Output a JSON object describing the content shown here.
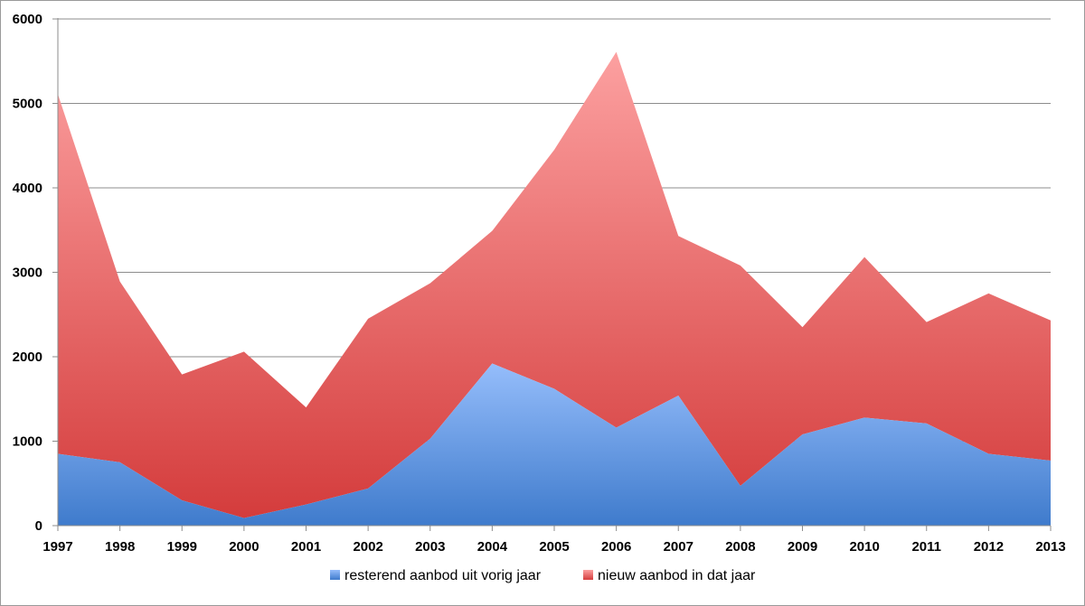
{
  "chart_data": {
    "type": "area",
    "stacked": true,
    "categories": [
      "1997",
      "1998",
      "1999",
      "2000",
      "2001",
      "2002",
      "2003",
      "2004",
      "2005",
      "2006",
      "2007",
      "2008",
      "2009",
      "2010",
      "2011",
      "2012",
      "2013"
    ],
    "series": [
      {
        "name": "resterend aanbod uit vorig jaar",
        "color": "#4f86d6",
        "values": [
          850,
          750,
          300,
          90,
          250,
          440,
          1030,
          1920,
          1620,
          1160,
          1540,
          470,
          1080,
          1280,
          1210,
          850,
          770
        ]
      },
      {
        "name": "nieuw aanbod in dat jaar",
        "color": "#e04848",
        "values": [
          4260,
          2140,
          1490,
          1970,
          1150,
          2010,
          1840,
          1570,
          2830,
          4450,
          1890,
          2610,
          1270,
          1900,
          1200,
          1900,
          1660
        ]
      }
    ],
    "ylim": [
      0,
      6000
    ],
    "yticks": [
      "0",
      "1000",
      "2000",
      "3000",
      "4000",
      "5000",
      "6000"
    ],
    "grid": true,
    "legend_position": "bottom"
  }
}
